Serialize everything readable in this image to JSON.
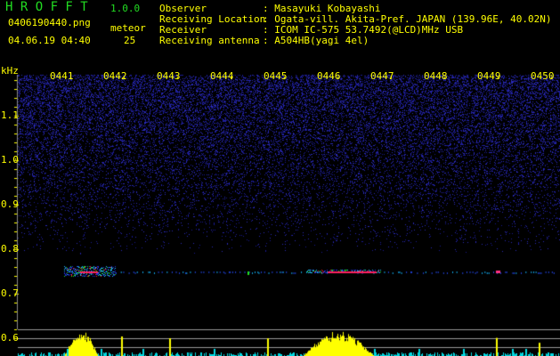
{
  "app": {
    "name": "H R O F F T",
    "version": "1.0.0"
  },
  "file": {
    "name": "0406190440.png",
    "datetime": "04.06.19 04:40"
  },
  "meteor": {
    "label": "meteor",
    "count": "25"
  },
  "info": [
    {
      "label": "Observer",
      "value": ": Masayuki Kobayashi"
    },
    {
      "label": "Receiving Location",
      "value": ": Ogata-vill. Akita-Pref. JAPAN (139.96E, 40.02N)"
    },
    {
      "label": "Receiver",
      "value": ": ICOM IC-575 53.7492(@LCD)MHz USB"
    },
    {
      "label": "Receiving antenna",
      "value": ": A504HB(yagi 4el)"
    }
  ],
  "colors": {
    "text": "#ffff00",
    "title": "#22dd22",
    "noise": "#1a1aa0",
    "histogram": "#ffff00",
    "baseline": "#00e0e0"
  },
  "chart_data": {
    "type": "heatmap",
    "ylabel": "kHz",
    "ylim": [
      0.58,
      1.2
    ],
    "x_ticks": [
      "0441",
      "0442",
      "0443",
      "0444",
      "0445",
      "0446",
      "0447",
      "0448",
      "0449",
      "0450"
    ],
    "y_ticks": [
      "1.1",
      "1.0",
      "0.9",
      "0.8",
      "0.7",
      "0.6"
    ],
    "echo_frequency_khz": 0.75,
    "echoes": [
      {
        "time": "0441-0442",
        "freq_khz": 0.75,
        "strength": "strong"
      },
      {
        "time": "0445-0447",
        "freq_khz": 0.75,
        "strength": "strong"
      },
      {
        "time": "0449",
        "freq_khz": 0.75,
        "strength": "medium"
      }
    ]
  }
}
